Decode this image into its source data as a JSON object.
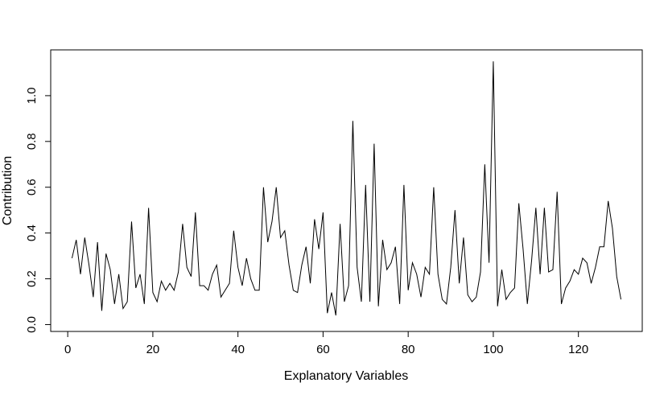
{
  "chart_data": {
    "type": "line",
    "xlabel": "Explanatory Variables",
    "ylabel": "Contribution",
    "xlim": [
      -4,
      135
    ],
    "ylim": [
      -0.03,
      1.2
    ],
    "xticks": [
      0,
      20,
      40,
      60,
      80,
      100,
      120
    ],
    "yticks": [
      0.0,
      0.2,
      0.4,
      0.6,
      0.8,
      1.0
    ],
    "ytick_labels": [
      "0.0",
      "0.2",
      "0.4",
      "0.6",
      "0.8",
      "1.0"
    ],
    "grid": false,
    "line_color": "#000000",
    "series": [
      {
        "values": [
          0.29,
          0.37,
          0.22,
          0.38,
          0.26,
          0.12,
          0.36,
          0.06,
          0.31,
          0.24,
          0.09,
          0.22,
          0.07,
          0.1,
          0.45,
          0.16,
          0.22,
          0.09,
          0.51,
          0.14,
          0.1,
          0.19,
          0.15,
          0.18,
          0.15,
          0.23,
          0.44,
          0.25,
          0.21,
          0.49,
          0.17,
          0.17,
          0.15,
          0.22,
          0.26,
          0.12,
          0.15,
          0.18,
          0.41,
          0.25,
          0.17,
          0.29,
          0.2,
          0.15,
          0.15,
          0.6,
          0.36,
          0.45,
          0.6,
          0.38,
          0.41,
          0.26,
          0.15,
          0.14,
          0.26,
          0.34,
          0.18,
          0.46,
          0.33,
          0.49,
          0.05,
          0.14,
          0.04,
          0.44,
          0.1,
          0.17,
          0.89,
          0.25,
          0.1,
          0.61,
          0.1,
          0.79,
          0.08,
          0.37,
          0.24,
          0.27,
          0.34,
          0.09,
          0.61,
          0.15,
          0.27,
          0.22,
          0.12,
          0.25,
          0.22,
          0.6,
          0.22,
          0.11,
          0.09,
          0.25,
          0.5,
          0.18,
          0.38,
          0.13,
          0.1,
          0.12,
          0.23,
          0.7,
          0.27,
          1.15,
          0.08,
          0.24,
          0.11,
          0.14,
          0.16,
          0.53,
          0.33,
          0.09,
          0.28,
          0.51,
          0.22,
          0.51,
          0.23,
          0.24,
          0.58,
          0.09,
          0.16,
          0.19,
          0.24,
          0.22,
          0.29,
          0.27,
          0.18,
          0.25,
          0.34,
          0.34,
          0.54,
          0.42,
          0.21,
          0.11
        ]
      }
    ]
  }
}
